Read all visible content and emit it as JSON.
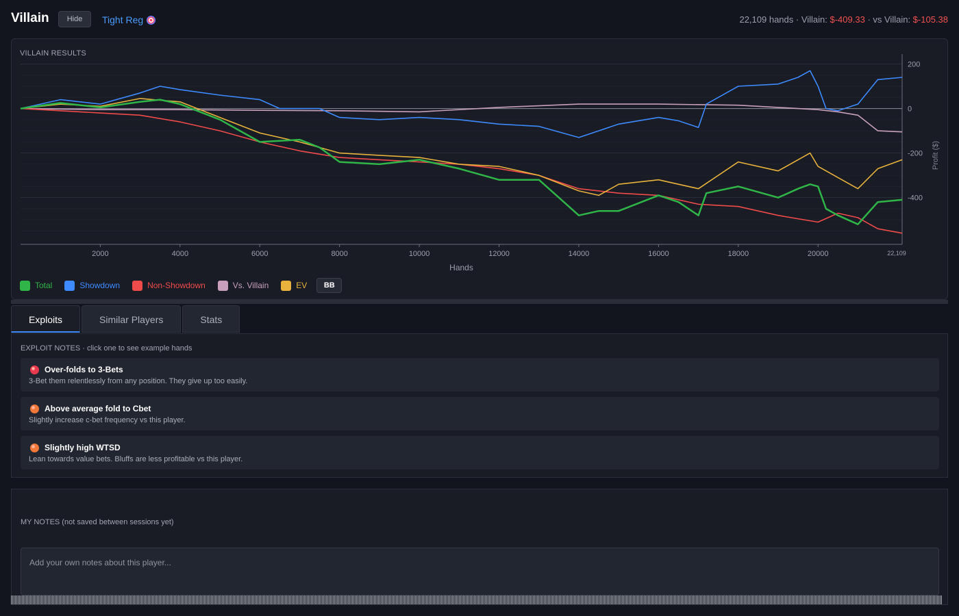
{
  "header": {
    "title": "Villain",
    "hide_label": "Hide",
    "player_type": "Tight Reg",
    "hands_text": "22,109 hands · Villain: ",
    "villain_profit": "$-409.33",
    "vs_text": " · vs Villain: ",
    "vs_villain_profit": "$-105.38"
  },
  "chart_panel": {
    "label": "VILLAIN RESULTS",
    "bb_label": "BB"
  },
  "colors": {
    "total": "#2fb548",
    "showdown": "#3d8bff",
    "non_showdown": "#f04b4b",
    "vs_villain": "#c9a0bc",
    "ev": "#e8b23c"
  },
  "chart_data": {
    "type": "line",
    "title": "",
    "xlabel": "Hands",
    "ylabel": "Profit ($)",
    "xlim": [
      0,
      22109
    ],
    "ylim": [
      -610,
      220
    ],
    "x_ticks": [
      2000,
      4000,
      6000,
      8000,
      10000,
      12000,
      14000,
      16000,
      18000,
      20000
    ],
    "x_end_label": "22,109",
    "y_ticks": [
      200,
      0,
      -200,
      -400
    ],
    "y_axis_side": "right",
    "grid": true,
    "legend": "bottom-left",
    "series": [
      {
        "name": "Total",
        "key": "total",
        "x": [
          0,
          1000,
          2000,
          3000,
          3500,
          4000,
          5000,
          6000,
          7000,
          7500,
          8000,
          9000,
          10000,
          11000,
          12000,
          13000,
          14000,
          14500,
          15000,
          16000,
          16500,
          17000,
          17200,
          18000,
          19000,
          19500,
          19800,
          20000,
          20200,
          20500,
          21000,
          21500,
          22109
        ],
        "y": [
          0,
          25,
          5,
          30,
          40,
          20,
          -50,
          -150,
          -140,
          -175,
          -240,
          -250,
          -230,
          -270,
          -320,
          -320,
          -480,
          -460,
          -460,
          -390,
          -420,
          -480,
          -380,
          -350,
          -400,
          -360,
          -340,
          -350,
          -450,
          -480,
          -520,
          -420,
          -410
        ]
      },
      {
        "name": "Showdown",
        "key": "showdown",
        "x": [
          0,
          1000,
          2000,
          3000,
          3500,
          4000,
          5000,
          6000,
          6500,
          7500,
          8000,
          9000,
          10000,
          11000,
          12000,
          13000,
          14000,
          14500,
          15000,
          16000,
          16500,
          17000,
          17200,
          18000,
          19000,
          19500,
          19800,
          20000,
          20200,
          20500,
          21000,
          21500,
          22109
        ],
        "y": [
          0,
          40,
          20,
          70,
          100,
          85,
          60,
          40,
          0,
          0,
          -40,
          -50,
          -40,
          -50,
          -70,
          -80,
          -130,
          -100,
          -70,
          -40,
          -55,
          -85,
          20,
          100,
          110,
          140,
          170,
          100,
          0,
          -10,
          20,
          130,
          140
        ]
      },
      {
        "name": "Non-Showdown",
        "key": "non_showdown",
        "x": [
          0,
          1000,
          2000,
          3000,
          4000,
          5000,
          6000,
          7000,
          8000,
          9000,
          10000,
          11000,
          12000,
          13000,
          14000,
          15000,
          16000,
          17000,
          18000,
          19000,
          20000,
          20500,
          21000,
          21500,
          22109
        ],
        "y": [
          0,
          -10,
          -20,
          -30,
          -60,
          -100,
          -150,
          -190,
          -220,
          -230,
          -240,
          -250,
          -270,
          -300,
          -360,
          -380,
          -390,
          -430,
          -440,
          -480,
          -510,
          -470,
          -490,
          -540,
          -560
        ]
      },
      {
        "name": "Vs. Villain",
        "key": "vs_villain",
        "x": [
          0,
          2000,
          4000,
          6000,
          8000,
          10000,
          12000,
          14000,
          16000,
          18000,
          20000,
          20500,
          21000,
          21500,
          22109
        ],
        "y": [
          0,
          -5,
          -5,
          -8,
          -10,
          -15,
          5,
          20,
          20,
          15,
          -5,
          -15,
          -30,
          -100,
          -105
        ]
      },
      {
        "name": "EV",
        "key": "ev",
        "x": [
          0,
          1000,
          2000,
          3000,
          4000,
          5000,
          6000,
          7000,
          8000,
          9000,
          10000,
          11000,
          12000,
          13000,
          14000,
          14500,
          15000,
          16000,
          17000,
          18000,
          19000,
          19800,
          20000,
          20500,
          21000,
          21500,
          22109
        ],
        "y": [
          0,
          20,
          10,
          45,
          30,
          -40,
          -110,
          -150,
          -200,
          -210,
          -220,
          -250,
          -260,
          -300,
          -370,
          -390,
          -340,
          -320,
          -360,
          -240,
          -280,
          -200,
          -260,
          -310,
          -360,
          -270,
          -230
        ]
      }
    ]
  },
  "tabs": [
    {
      "label": "Exploits",
      "active": true
    },
    {
      "label": "Similar Players",
      "active": false
    },
    {
      "label": "Stats",
      "active": false
    }
  ],
  "exploits": {
    "label": "EXPLOIT NOTES  ·  click one to see example hands",
    "items": [
      {
        "title": "Over-folds to 3-Bets",
        "desc": "3-Bet them relentlessly from any position. They give up too easily.",
        "color": "#e8394f"
      },
      {
        "title": "Above average fold to Cbet",
        "desc": "Slightly increase c-bet frequency vs this player.",
        "color": "#f07838"
      },
      {
        "title": "Slightly high WTSD",
        "desc": "Lean towards value bets. Bluffs are less profitable vs this player.",
        "color": "#f07838"
      }
    ]
  },
  "notes": {
    "label": "MY NOTES  (not saved between sessions yet)",
    "placeholder": "Add your own notes about this player..."
  }
}
